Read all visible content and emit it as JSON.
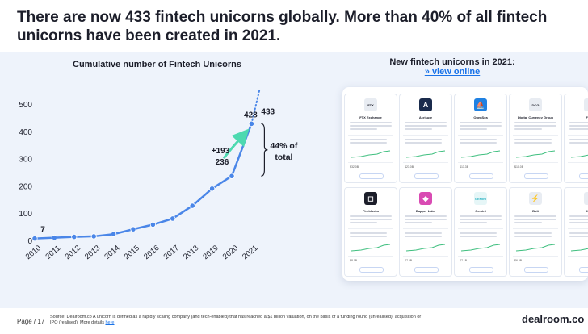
{
  "headline": "There are now 433 fintech unicorns globally. More than 40% of all fintech unicorns have been created in 2021.",
  "colors": {
    "line": "#4a86e8",
    "arrow": "#4dd9b0",
    "link": "#1a73e8",
    "panel": "#eef3fb"
  },
  "chart_data": {
    "type": "line",
    "title": "Cumulative number of Fintech Unicorns",
    "x": [
      "2010",
      "2011",
      "2012",
      "2013",
      "2014",
      "2015",
      "2016",
      "2017",
      "2018",
      "2019",
      "2020",
      "2021"
    ],
    "y": [
      7,
      10,
      13,
      15,
      23,
      41,
      58,
      80,
      127,
      190,
      236,
      428
    ],
    "projected": {
      "x_after": "2021",
      "value": 433
    },
    "ylim": [
      0,
      500
    ],
    "yticks": [
      0,
      100,
      200,
      300,
      400,
      500
    ],
    "grid": false,
    "labels": {
      "start": "7",
      "y2020": "236",
      "y2021": "428",
      "projected": "433"
    },
    "annotations": {
      "delta": "+193",
      "brace_line1": "44% of",
      "brace_line2": "total"
    }
  },
  "right_panel": {
    "title": "New fintech unicorns in 2021:",
    "link": "» view online"
  },
  "cards": [
    {
      "name": "FTX Exchange",
      "logo_text": "FTX",
      "logo_color": "#e8ecf2",
      "logo_fg": "#1c1e2a",
      "value": "$32.0B"
    },
    {
      "name": "Acrisure",
      "logo_text": "A",
      "logo_color": "#1a2b4c",
      "logo_fg": "#ffffff",
      "value": "$23.0B"
    },
    {
      "name": "OpenSea",
      "logo_text": "⛵",
      "logo_color": "#2081e2",
      "logo_fg": "#ffffff",
      "value": "$13.3B"
    },
    {
      "name": "Digital Currency Group",
      "logo_text": "DCG",
      "logo_color": "#e8ecf2",
      "logo_fg": "#1c1e2a",
      "value": "$10.0B"
    },
    {
      "name": "Firebl",
      "logo_text": "",
      "logo_color": "#e8ecf2",
      "logo_fg": "#1c1e2a",
      "value": ""
    },
    {
      "name": "Fireblocks",
      "logo_text": "◻",
      "logo_color": "#1c1e2a",
      "logo_fg": "#ffffff",
      "value": "$8.0B"
    },
    {
      "name": "Dapper Labs",
      "logo_text": "◆",
      "logo_color": "#d94bb3",
      "logo_fg": "#ffffff",
      "value": "$7.6B"
    },
    {
      "name": "Gemini",
      "logo_text": "GEMINI",
      "logo_color": "#e6f6f7",
      "logo_fg": "#2fb5c4",
      "value": "$7.1B"
    },
    {
      "name": "Bolt",
      "logo_text": "⚡",
      "logo_color": "#e8ecf2",
      "logo_fg": "#3b82f6",
      "value": "$6.0B"
    },
    {
      "name": "Klarn",
      "logo_text": "",
      "logo_color": "#e8ecf2",
      "logo_fg": "#1c1e2a",
      "value": ""
    }
  ],
  "footer": {
    "page": "Page",
    "page_number": "/ 17",
    "source": "Source: Dealroom.co  A unicorn is defined as a rapidly scaling company (and tech-enabled) that has reached a $1 billion valuation, on the basis of a funding round (unrealised), acquisition or IPO (realised). More details",
    "source_link": "here",
    "brand": "dealroom.co"
  }
}
